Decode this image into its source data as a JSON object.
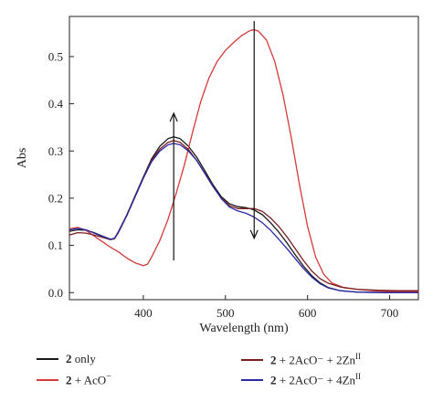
{
  "chart_data": {
    "type": "line",
    "xlabel": "Wavelength (nm)",
    "ylabel": "Abs",
    "xlim": [
      310,
      735
    ],
    "ylim": [
      -0.015,
      0.585
    ],
    "x_ticks": [
      400,
      500,
      600,
      700
    ],
    "y_ticks": [
      0.0,
      0.1,
      0.2,
      0.3,
      0.4,
      0.5
    ],
    "y_tick_labels": [
      "0.0",
      "0.1",
      "0.2",
      "0.3",
      "0.4",
      "0.5"
    ],
    "series": [
      {
        "name": "2 only",
        "color": "#1a1a1a",
        "points": [
          [
            310,
            0.13
          ],
          [
            320,
            0.133
          ],
          [
            330,
            0.132
          ],
          [
            340,
            0.127
          ],
          [
            350,
            0.12
          ],
          [
            360,
            0.113
          ],
          [
            365,
            0.115
          ],
          [
            370,
            0.13
          ],
          [
            380,
            0.165
          ],
          [
            390,
            0.205
          ],
          [
            400,
            0.245
          ],
          [
            410,
            0.283
          ],
          [
            420,
            0.31
          ],
          [
            430,
            0.326
          ],
          [
            437,
            0.33
          ],
          [
            445,
            0.326
          ],
          [
            455,
            0.31
          ],
          [
            465,
            0.287
          ],
          [
            475,
            0.258
          ],
          [
            485,
            0.228
          ],
          [
            495,
            0.203
          ],
          [
            505,
            0.188
          ],
          [
            515,
            0.182
          ],
          [
            525,
            0.18
          ],
          [
            535,
            0.175
          ],
          [
            545,
            0.165
          ],
          [
            555,
            0.148
          ],
          [
            565,
            0.128
          ],
          [
            575,
            0.105
          ],
          [
            585,
            0.08
          ],
          [
            595,
            0.056
          ],
          [
            605,
            0.036
          ],
          [
            615,
            0.021
          ],
          [
            625,
            0.011
          ],
          [
            640,
            0.004
          ],
          [
            660,
            0.001
          ],
          [
            700,
            0.0
          ],
          [
            735,
            0.0
          ]
        ]
      },
      {
        "name": "2 + AcO⁻",
        "color": "#d33a3a",
        "points": [
          [
            310,
            0.135
          ],
          [
            320,
            0.138
          ],
          [
            330,
            0.132
          ],
          [
            340,
            0.12
          ],
          [
            350,
            0.108
          ],
          [
            360,
            0.096
          ],
          [
            370,
            0.086
          ],
          [
            380,
            0.073
          ],
          [
            390,
            0.063
          ],
          [
            400,
            0.057
          ],
          [
            405,
            0.06
          ],
          [
            410,
            0.075
          ],
          [
            420,
            0.11
          ],
          [
            430,
            0.155
          ],
          [
            440,
            0.21
          ],
          [
            450,
            0.27
          ],
          [
            460,
            0.34
          ],
          [
            470,
            0.405
          ],
          [
            480,
            0.455
          ],
          [
            490,
            0.49
          ],
          [
            500,
            0.513
          ],
          [
            510,
            0.53
          ],
          [
            520,
            0.545
          ],
          [
            530,
            0.555
          ],
          [
            535,
            0.557
          ],
          [
            540,
            0.554
          ],
          [
            550,
            0.535
          ],
          [
            560,
            0.49
          ],
          [
            570,
            0.42
          ],
          [
            580,
            0.33
          ],
          [
            590,
            0.23
          ],
          [
            600,
            0.14
          ],
          [
            610,
            0.075
          ],
          [
            620,
            0.038
          ],
          [
            630,
            0.02
          ],
          [
            645,
            0.01
          ],
          [
            665,
            0.006
          ],
          [
            690,
            0.003
          ],
          [
            710,
            0.002
          ],
          [
            735,
            0.002
          ]
        ]
      },
      {
        "name": "2 + 2AcO⁻ + 2Znᴵᴵ",
        "color": "#7a1f1f",
        "points": [
          [
            310,
            0.122
          ],
          [
            320,
            0.127
          ],
          [
            330,
            0.126
          ],
          [
            340,
            0.122
          ],
          [
            350,
            0.117
          ],
          [
            360,
            0.112
          ],
          [
            365,
            0.114
          ],
          [
            370,
            0.128
          ],
          [
            380,
            0.163
          ],
          [
            390,
            0.203
          ],
          [
            400,
            0.243
          ],
          [
            410,
            0.28
          ],
          [
            420,
            0.304
          ],
          [
            430,
            0.318
          ],
          [
            437,
            0.322
          ],
          [
            445,
            0.318
          ],
          [
            455,
            0.303
          ],
          [
            465,
            0.28
          ],
          [
            475,
            0.252
          ],
          [
            485,
            0.224
          ],
          [
            495,
            0.2
          ],
          [
            505,
            0.184
          ],
          [
            515,
            0.178
          ],
          [
            525,
            0.178
          ],
          [
            535,
            0.178
          ],
          [
            545,
            0.172
          ],
          [
            555,
            0.158
          ],
          [
            565,
            0.14
          ],
          [
            575,
            0.118
          ],
          [
            585,
            0.093
          ],
          [
            595,
            0.068
          ],
          [
            605,
            0.046
          ],
          [
            615,
            0.03
          ],
          [
            625,
            0.02
          ],
          [
            640,
            0.012
          ],
          [
            660,
            0.007
          ],
          [
            685,
            0.005
          ],
          [
            710,
            0.004
          ],
          [
            735,
            0.004
          ]
        ]
      },
      {
        "name": "2 + 2AcO⁻ + 4Znᴵᴵ",
        "color": "#2a2aa6",
        "points": [
          [
            310,
            0.133
          ],
          [
            320,
            0.136
          ],
          [
            330,
            0.133
          ],
          [
            340,
            0.126
          ],
          [
            350,
            0.119
          ],
          [
            360,
            0.113
          ],
          [
            365,
            0.115
          ],
          [
            370,
            0.13
          ],
          [
            380,
            0.164
          ],
          [
            390,
            0.203
          ],
          [
            400,
            0.242
          ],
          [
            410,
            0.277
          ],
          [
            420,
            0.3
          ],
          [
            430,
            0.313
          ],
          [
            437,
            0.316
          ],
          [
            445,
            0.313
          ],
          [
            455,
            0.3
          ],
          [
            465,
            0.28
          ],
          [
            475,
            0.253
          ],
          [
            485,
            0.225
          ],
          [
            495,
            0.199
          ],
          [
            505,
            0.181
          ],
          [
            515,
            0.173
          ],
          [
            525,
            0.168
          ],
          [
            535,
            0.16
          ],
          [
            545,
            0.148
          ],
          [
            555,
            0.132
          ],
          [
            565,
            0.113
          ],
          [
            575,
            0.093
          ],
          [
            585,
            0.072
          ],
          [
            595,
            0.051
          ],
          [
            605,
            0.033
          ],
          [
            615,
            0.019
          ],
          [
            625,
            0.01
          ],
          [
            640,
            0.004
          ],
          [
            660,
            0.001
          ],
          [
            700,
            0.0
          ],
          [
            735,
            0.0
          ]
        ]
      }
    ],
    "arrows": [
      {
        "direction": "up",
        "x": 437,
        "y_from": 0.068,
        "y_to": 0.38
      },
      {
        "direction": "down",
        "x": 535,
        "y_from": 0.575,
        "y_to": 0.115
      }
    ]
  },
  "legend": {
    "items": [
      {
        "bold": "2",
        "text": " only",
        "sup": "",
        "color": "#1a1a1a"
      },
      {
        "bold": "2",
        "text": " + AcO",
        "sup": "−",
        "color": "#d33a3a"
      },
      {
        "bold": "2",
        "text": " + 2AcO⁻ + 2Zn",
        "sup": "II",
        "color": "#7a1f1f"
      },
      {
        "bold": "2",
        "text": " + 2AcO⁻ + 4Zn",
        "sup": "II",
        "color": "#2a2aa6"
      }
    ]
  }
}
